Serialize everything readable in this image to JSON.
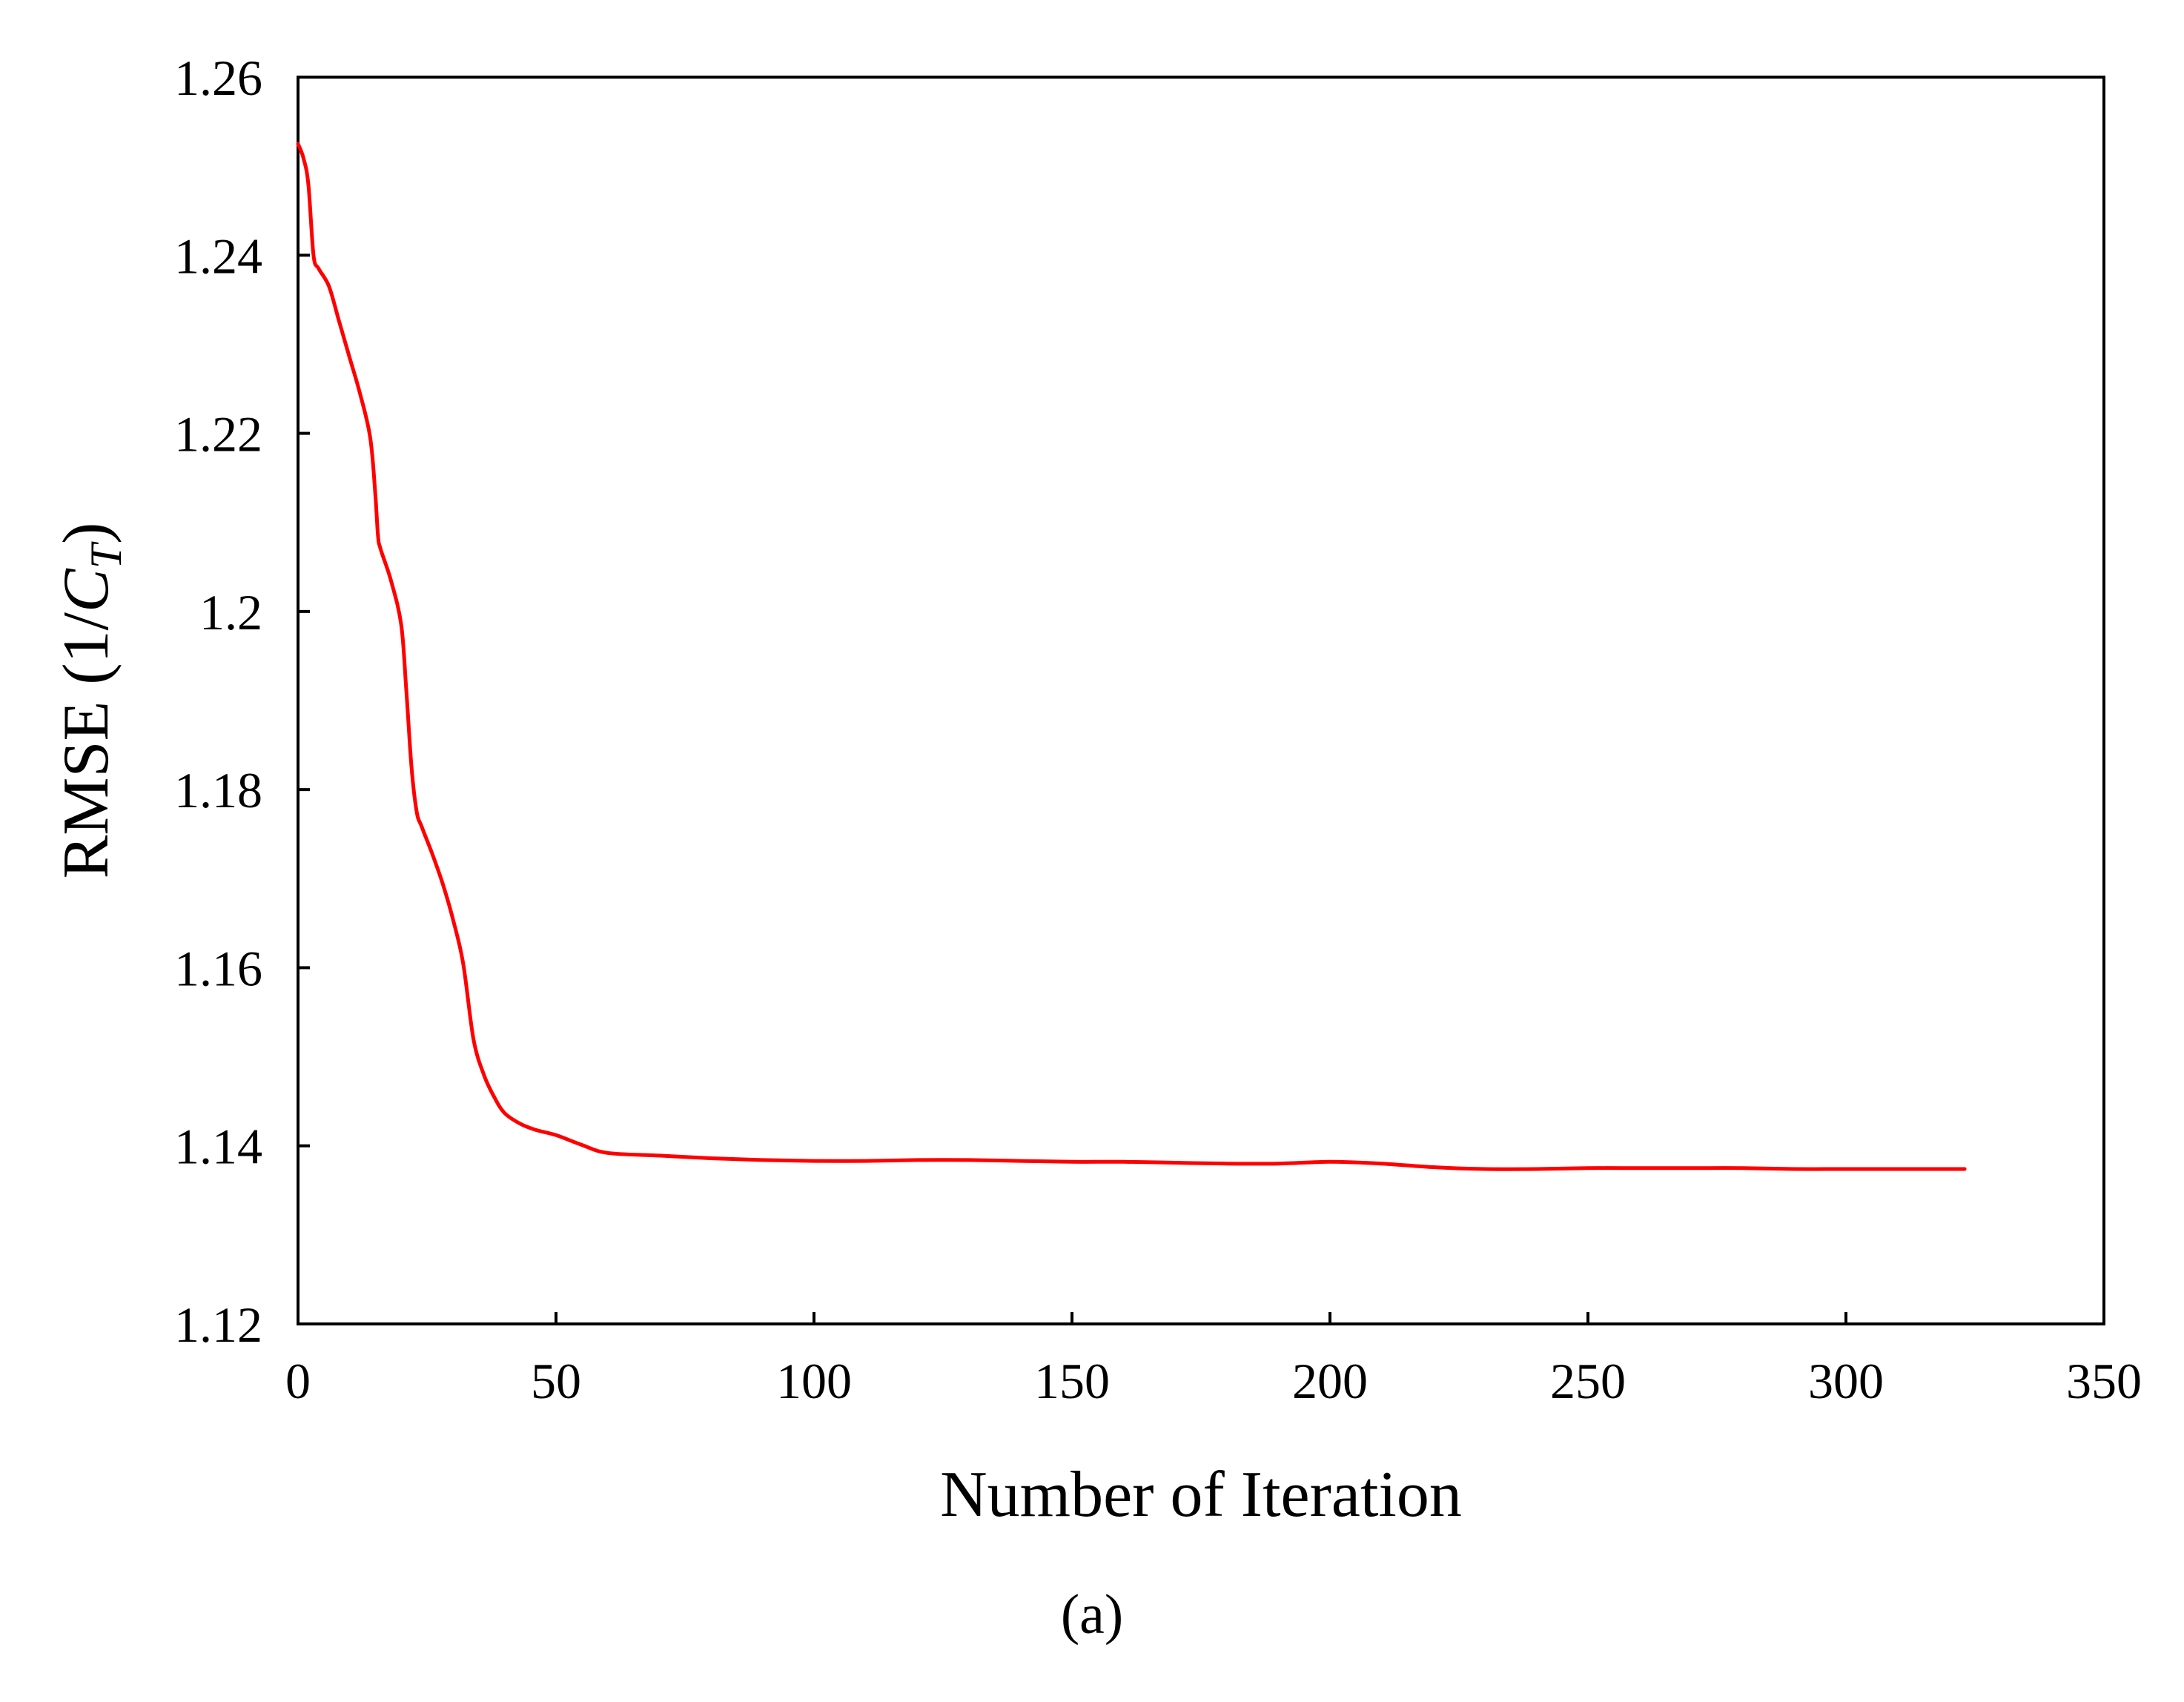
{
  "chart_data": {
    "type": "line",
    "title": "",
    "xlabel": "Number of Iteration",
    "ylabel": {
      "main": "RMSE (1/",
      "symbol": "C",
      "subscript": "T",
      "close": ")"
    },
    "xlim": [
      0,
      350
    ],
    "ylim": [
      1.12,
      1.26
    ],
    "x_ticks": [
      "0",
      "50",
      "100",
      "150",
      "200",
      "250",
      "300",
      "350"
    ],
    "y_ticks": [
      "1.12",
      "1.14",
      "1.16",
      "1.18",
      "1.2",
      "1.22",
      "1.24",
      "1.26"
    ],
    "x_tick_values": [
      0,
      50,
      100,
      150,
      200,
      250,
      300,
      350
    ],
    "y_tick_values": [
      1.12,
      1.14,
      1.16,
      1.18,
      1.2,
      1.22,
      1.24,
      1.26
    ],
    "grid": false,
    "series": [
      {
        "color": "#ff0000",
        "x": [
          0,
          1,
          2,
          3,
          4,
          6,
          8,
          10,
          12,
          14,
          15,
          15.5,
          16,
          18,
          20,
          21,
          22,
          23,
          24,
          26,
          28,
          30,
          32,
          34,
          36,
          38,
          40,
          43,
          46,
          50,
          55,
          60,
          70,
          80,
          90,
          100,
          110,
          120,
          130,
          140,
          150,
          160,
          170,
          180,
          190,
          200,
          210,
          220,
          230,
          240,
          250,
          260,
          270,
          280,
          290,
          300,
          310,
          323
        ],
        "y": [
          1.2525,
          1.251,
          1.248,
          1.24,
          1.2385,
          1.2365,
          1.2325,
          1.2285,
          1.2245,
          1.2195,
          1.213,
          1.2085,
          1.207,
          1.2035,
          1.1985,
          1.191,
          1.1825,
          1.1775,
          1.1758,
          1.1728,
          1.1695,
          1.1655,
          1.1605,
          1.152,
          1.148,
          1.1455,
          1.1437,
          1.1425,
          1.1418,
          1.1412,
          1.1401,
          1.1392,
          1.1389,
          1.1386,
          1.1384,
          1.1383,
          1.1383,
          1.1384,
          1.1384,
          1.1383,
          1.1382,
          1.1382,
          1.1381,
          1.138,
          1.138,
          1.1382,
          1.138,
          1.1376,
          1.1374,
          1.1374,
          1.1375,
          1.1375,
          1.1375,
          1.1375,
          1.1374,
          1.1374,
          1.1374,
          1.1374
        ]
      }
    ]
  },
  "caption": "(a)"
}
